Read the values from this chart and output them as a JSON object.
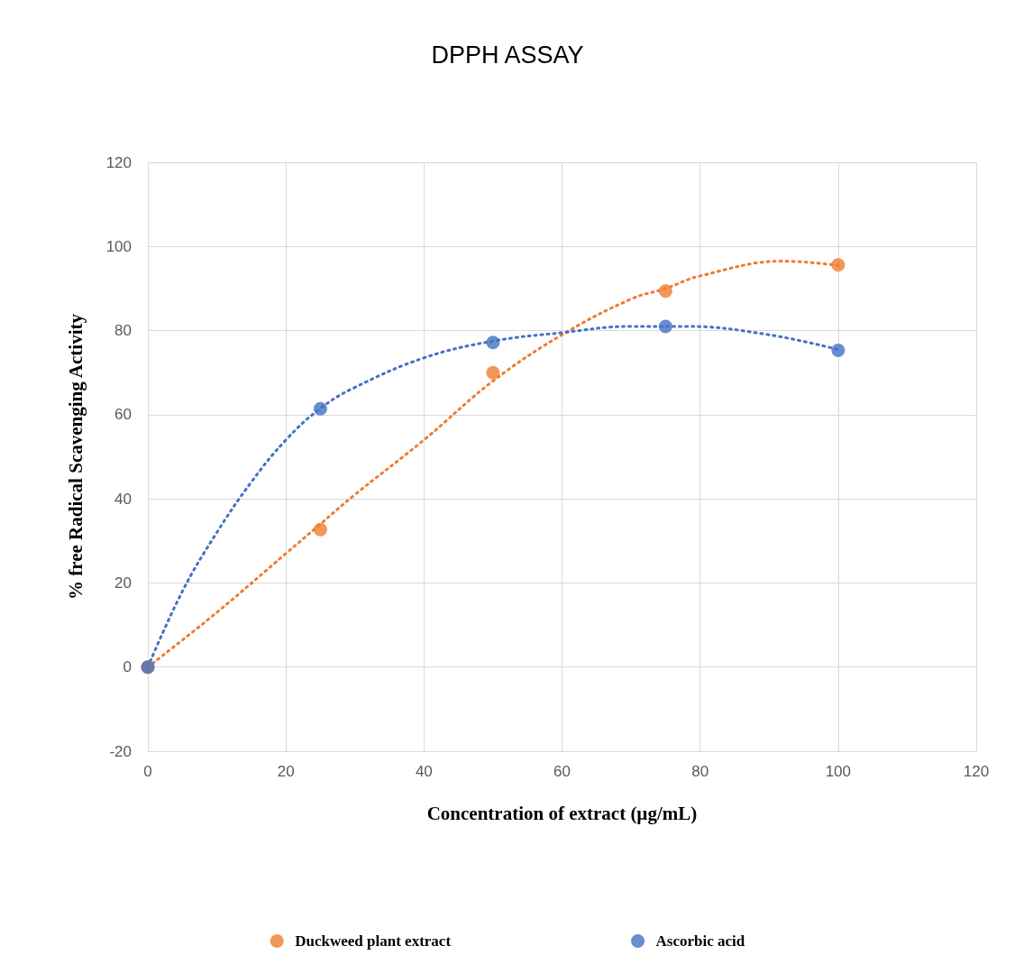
{
  "chart_data": {
    "type": "scatter",
    "title": "DPPH ASSAY",
    "xlabel": "Concentration of extract (µg/mL)",
    "ylabel": "% free Radical Scavenging Activity",
    "xlim": [
      0,
      120
    ],
    "xticks": [
      0,
      20,
      40,
      60,
      80,
      100,
      120
    ],
    "ylim": [
      -20,
      120
    ],
    "yticks": [
      -20,
      0,
      20,
      40,
      60,
      80,
      100,
      120
    ],
    "grid": true,
    "legend": "bottom",
    "marker": "circle",
    "series": [
      {
        "name": "Duckweed plant extract",
        "color": "#ed7d31",
        "x": [
          0,
          25,
          50,
          75,
          100
        ],
        "values": [
          0,
          32.7,
          70,
          89.4,
          95.6
        ]
      },
      {
        "name": "Ascorbic acid",
        "color": "#4472c4",
        "x": [
          0,
          25,
          50,
          75,
          100
        ],
        "values": [
          0,
          61.4,
          77.2,
          81,
          75.3
        ]
      },
      {
        "type": "line",
        "color": "#ed7d31",
        "line_style": "dotted",
        "marker": "none",
        "x": [
          0,
          10,
          20,
          25,
          30,
          40,
          50,
          60,
          70,
          75,
          80,
          92,
          100
        ],
        "values": [
          0,
          13,
          27,
          34,
          41,
          54,
          68,
          79,
          87.5,
          90,
          93,
          96.5,
          95.5
        ]
      },
      {
        "type": "line",
        "color": "#4472c4",
        "line_style": "dotted",
        "marker": "none",
        "x": [
          0,
          5,
          10,
          15,
          20,
          25,
          30,
          40,
          50,
          60,
          70,
          78,
          90,
          100
        ],
        "values": [
          0,
          18,
          32,
          44,
          54,
          61.5,
          66.5,
          73.5,
          77.5,
          79.5,
          81,
          81,
          79,
          75.5
        ]
      }
    ]
  }
}
